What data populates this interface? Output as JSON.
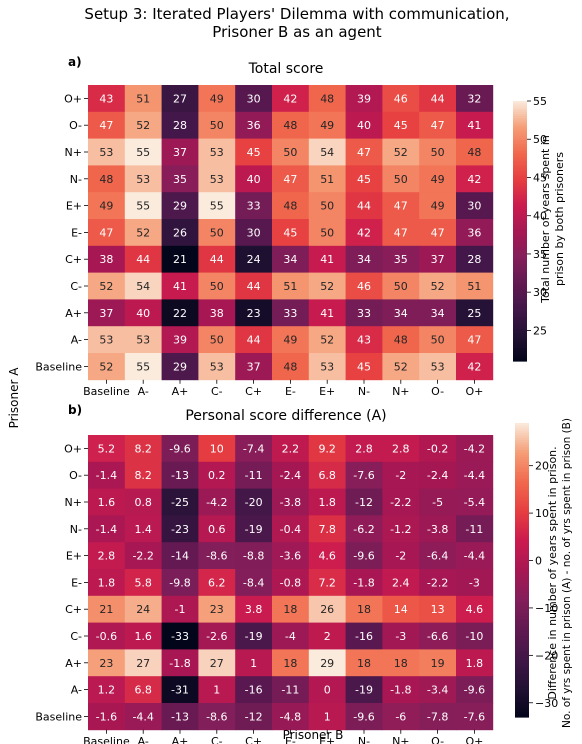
{
  "figure": {
    "title_line1": "Setup 3: Iterated Players' Dilemma with communication,",
    "title_line2": "Prisoner B as an agent",
    "shared_ylabel": "Prisoner A",
    "shared_xlabel": "Prisoner B"
  },
  "chart_data": [
    {
      "type": "heatmap",
      "panel_label": "a)",
      "title": "Total score",
      "rows": [
        "O+",
        "O-",
        "N+",
        "N-",
        "E+",
        "E-",
        "C+",
        "C-",
        "A+",
        "A-",
        "Baseline"
      ],
      "columns": [
        "Baseline",
        "A-",
        "A+",
        "C-",
        "C+",
        "E-",
        "E+",
        "N-",
        "N+",
        "O-",
        "O+"
      ],
      "values": [
        [
          43,
          51,
          27,
          49,
          30,
          42,
          48,
          39,
          46,
          44,
          32
        ],
        [
          47,
          52,
          28,
          50,
          36,
          48,
          49,
          40,
          45,
          47,
          41
        ],
        [
          53,
          55,
          37,
          53,
          45,
          50,
          54,
          47,
          52,
          50,
          48
        ],
        [
          48,
          53,
          35,
          53,
          40,
          47,
          51,
          45,
          50,
          49,
          42
        ],
        [
          49,
          55,
          29,
          55,
          33,
          48,
          50,
          44,
          47,
          49,
          30
        ],
        [
          47,
          52,
          26,
          50,
          30,
          45,
          50,
          42,
          47,
          47,
          36
        ],
        [
          38,
          44,
          21,
          44,
          24,
          34,
          41,
          34,
          35,
          37,
          28
        ],
        [
          52,
          54,
          41,
          50,
          44,
          51,
          52,
          46,
          50,
          52,
          51
        ],
        [
          37,
          40,
          22,
          38,
          23,
          33,
          41,
          33,
          34,
          34,
          25
        ],
        [
          53,
          53,
          39,
          50,
          44,
          49,
          52,
          43,
          48,
          50,
          47
        ],
        [
          52,
          55,
          29,
          53,
          37,
          48,
          53,
          45,
          52,
          53,
          42
        ]
      ],
      "colorbar": {
        "label_line1": "Total number of years spent in",
        "label_line2": "prison by both prisoners",
        "min": 21,
        "max": 55,
        "ticks": [
          "25",
          "30",
          "35",
          "40",
          "45",
          "50",
          "55"
        ]
      }
    },
    {
      "type": "heatmap",
      "panel_label": "b)",
      "title": "Personal score difference (A)",
      "rows": [
        "O+",
        "O-",
        "N+",
        "N-",
        "E+",
        "E-",
        "C+",
        "C-",
        "A+",
        "A-",
        "Baseline"
      ],
      "columns": [
        "Baseline",
        "A-",
        "A+",
        "C-",
        "C+",
        "E-",
        "E+",
        "N-",
        "N+",
        "O-",
        "O+"
      ],
      "values": [
        [
          "5.2",
          "8.2",
          "-9.6",
          "10",
          "-7.4",
          "2.2",
          "9.2",
          "2.8",
          "2.8",
          "-0.2",
          "-4.2"
        ],
        [
          "-1.4",
          "8.2",
          "-13",
          "0.2",
          "-11",
          "-2.4",
          "6.8",
          "-7.6",
          "-2",
          "-2.4",
          "-4.4"
        ],
        [
          "1.6",
          "0.8",
          "-25",
          "-4.2",
          "-20",
          "-3.8",
          "1.8",
          "-12",
          "-2.2",
          "-5",
          "-5.4"
        ],
        [
          "-1.4",
          "1.4",
          "-23",
          "0.6",
          "-19",
          "-0.4",
          "7.8",
          "-6.2",
          "-1.2",
          "-3.8",
          "-11"
        ],
        [
          "2.8",
          "-2.2",
          "-14",
          "-8.6",
          "-8.8",
          "-3.6",
          "4.6",
          "-9.6",
          "-2",
          "-6.4",
          "-4.4"
        ],
        [
          "1.8",
          "5.8",
          "-9.8",
          "6.2",
          "-8.4",
          "-0.8",
          "7.2",
          "-1.8",
          "2.4",
          "-2.2",
          "-3"
        ],
        [
          "21",
          "24",
          "-1",
          "23",
          "3.8",
          "18",
          "26",
          "18",
          "14",
          "13",
          "4.6"
        ],
        [
          "-0.6",
          "1.6",
          "-33",
          "-2.6",
          "-19",
          "-4",
          "2",
          "-16",
          "-3",
          "-6.6",
          "-10"
        ],
        [
          "23",
          "27",
          "-1.8",
          "27",
          "1",
          "18",
          "29",
          "18",
          "18",
          "19",
          "1.8"
        ],
        [
          "1.2",
          "6.8",
          "-31",
          "1",
          "-16",
          "-11",
          "0",
          "-19",
          "-1.8",
          "-3.4",
          "-9.6"
        ],
        [
          "-1.6",
          "-4.4",
          "-13",
          "-8.6",
          "-12",
          "-4.8",
          "1",
          "-9.6",
          "-6",
          "-7.8",
          "-7.6"
        ]
      ],
      "colorbar": {
        "label_line1": "Difference in number of years spent in prison.",
        "label_line2": "No. of yrs spent in prison (A) - no. of yrs spent in prison (B)",
        "min": -33,
        "max": 29,
        "ticks": [
          "-30",
          "-20",
          "-10",
          "0",
          "10",
          "20"
        ]
      }
    }
  ]
}
